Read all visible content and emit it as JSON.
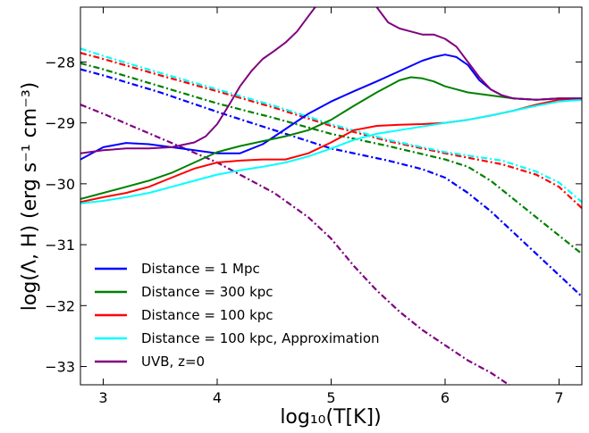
{
  "chart_data": {
    "type": "line",
    "xlabel": "log₁₀(T[K])",
    "ylabel": "log(Λ, H) (erg s⁻¹ cm⁻³)",
    "xlim": [
      2.8,
      7.2
    ],
    "ylim": [
      -33.3,
      -27.1
    ],
    "xticks": [
      3,
      4,
      5,
      6,
      7
    ],
    "yticks": [
      -28,
      -29,
      -30,
      -31,
      -32,
      -33
    ],
    "grid": false,
    "legend_position": "lower-left",
    "series": [
      {
        "name": "Distance = 1 Mpc",
        "kind": "cooling",
        "style": "solid",
        "color": "#0000ff",
        "x": [
          2.8,
          3.0,
          3.2,
          3.4,
          3.6,
          3.8,
          4.0,
          4.2,
          4.4,
          4.6,
          4.8,
          5.0,
          5.2,
          5.4,
          5.6,
          5.8,
          5.9,
          6.0,
          6.1,
          6.2,
          6.3,
          6.4,
          6.5,
          6.6,
          6.8,
          7.0,
          7.2
        ],
        "y": [
          -29.6,
          -29.4,
          -29.33,
          -29.35,
          -29.4,
          -29.45,
          -29.5,
          -29.5,
          -29.35,
          -29.1,
          -28.85,
          -28.65,
          -28.48,
          -28.32,
          -28.15,
          -27.98,
          -27.92,
          -27.88,
          -27.92,
          -28.05,
          -28.3,
          -28.45,
          -28.55,
          -28.6,
          -28.62,
          -28.6,
          -28.6
        ]
      },
      {
        "name": "Distance  = 300 kpc",
        "kind": "cooling",
        "style": "solid",
        "color": "#008000",
        "x": [
          2.8,
          3.0,
          3.2,
          3.4,
          3.6,
          3.8,
          4.0,
          4.2,
          4.4,
          4.6,
          4.8,
          5.0,
          5.2,
          5.4,
          5.6,
          5.7,
          5.8,
          5.9,
          6.0,
          6.2,
          6.4,
          6.6,
          6.8,
          7.0,
          7.2
        ],
        "y": [
          -30.25,
          -30.15,
          -30.05,
          -29.95,
          -29.82,
          -29.65,
          -29.48,
          -29.38,
          -29.3,
          -29.22,
          -29.12,
          -28.95,
          -28.72,
          -28.5,
          -28.3,
          -28.25,
          -28.27,
          -28.32,
          -28.4,
          -28.5,
          -28.55,
          -28.6,
          -28.62,
          -28.6,
          -28.6
        ]
      },
      {
        "name": "Distance = 100 kpc",
        "kind": "cooling",
        "style": "solid",
        "color": "#ff0000",
        "x": [
          2.8,
          3.0,
          3.2,
          3.4,
          3.6,
          3.8,
          4.0,
          4.2,
          4.4,
          4.6,
          4.8,
          5.0,
          5.2,
          5.4,
          5.6,
          5.8,
          6.0,
          6.2,
          6.4,
          6.6,
          6.8,
          7.0,
          7.2
        ],
        "y": [
          -30.3,
          -30.22,
          -30.15,
          -30.05,
          -29.9,
          -29.75,
          -29.65,
          -29.62,
          -29.6,
          -29.6,
          -29.5,
          -29.32,
          -29.12,
          -29.05,
          -29.03,
          -29.02,
          -29.0,
          -28.95,
          -28.88,
          -28.8,
          -28.7,
          -28.62,
          -28.6
        ]
      },
      {
        "name": "Distance = 100 kpc, Approximation",
        "kind": "cooling",
        "style": "solid",
        "color": "#00ffff",
        "x": [
          2.8,
          3.0,
          3.2,
          3.4,
          3.6,
          3.8,
          4.0,
          4.2,
          4.4,
          4.6,
          4.8,
          5.0,
          5.2,
          5.4,
          5.6,
          5.8,
          6.0,
          6.2,
          6.4,
          6.6,
          6.8,
          7.0,
          7.2
        ],
        "y": [
          -30.32,
          -30.28,
          -30.22,
          -30.15,
          -30.05,
          -29.95,
          -29.85,
          -29.78,
          -29.72,
          -29.65,
          -29.55,
          -29.42,
          -29.28,
          -29.18,
          -29.12,
          -29.06,
          -29.0,
          -28.95,
          -28.88,
          -28.8,
          -28.72,
          -28.65,
          -28.62
        ]
      },
      {
        "name": "UVB, z=0",
        "kind": "cooling",
        "style": "solid",
        "color": "#800080",
        "x": [
          2.8,
          3.0,
          3.2,
          3.4,
          3.6,
          3.8,
          3.9,
          4.0,
          4.1,
          4.2,
          4.3,
          4.4,
          4.5,
          4.6,
          4.7,
          4.8,
          4.9,
          5.0,
          5.1,
          5.2,
          5.3,
          5.4,
          5.5,
          5.6,
          5.7,
          5.8,
          5.9,
          6.0,
          6.1,
          6.2,
          6.3,
          6.4,
          6.5,
          6.6,
          6.8,
          7.0,
          7.2
        ],
        "y": [
          -29.5,
          -29.45,
          -29.42,
          -29.42,
          -29.4,
          -29.32,
          -29.22,
          -29.02,
          -28.72,
          -28.4,
          -28.15,
          -27.95,
          -27.82,
          -27.68,
          -27.5,
          -27.25,
          -27.0,
          -26.95,
          -26.95,
          -26.97,
          -27.0,
          -27.1,
          -27.35,
          -27.45,
          -27.5,
          -27.55,
          -27.55,
          -27.62,
          -27.75,
          -28.0,
          -28.25,
          -28.45,
          -28.55,
          -28.6,
          -28.62,
          -28.6,
          -28.6
        ]
      },
      {
        "name": "",
        "kind": "heating",
        "style": "dashdot",
        "color": "#0000ff",
        "x": [
          2.8,
          3.0,
          3.5,
          4.0,
          4.5,
          5.0,
          5.5,
          5.8,
          6.0,
          6.2,
          6.4,
          6.6,
          6.8,
          7.0,
          7.2
        ],
        "y": [
          -28.12,
          -28.22,
          -28.5,
          -28.82,
          -29.12,
          -29.42,
          -29.62,
          -29.76,
          -29.9,
          -30.15,
          -30.45,
          -30.8,
          -31.15,
          -31.5,
          -31.85
        ]
      },
      {
        "name": "",
        "kind": "heating",
        "style": "dashdot",
        "color": "#008000",
        "x": [
          2.8,
          3.0,
          3.5,
          4.0,
          4.5,
          5.0,
          5.5,
          6.0,
          6.2,
          6.4,
          6.6,
          6.8,
          7.0,
          7.2
        ],
        "y": [
          -28.02,
          -28.12,
          -28.4,
          -28.68,
          -28.92,
          -29.18,
          -29.38,
          -29.6,
          -29.72,
          -29.95,
          -30.25,
          -30.55,
          -30.85,
          -31.15
        ]
      },
      {
        "name": "",
        "kind": "heating",
        "style": "dashdot",
        "color": "#ff0000",
        "x": [
          2.8,
          3.0,
          3.5,
          4.0,
          4.5,
          5.0,
          5.5,
          6.0,
          6.5,
          6.8,
          7.0,
          7.2
        ],
        "y": [
          -27.85,
          -27.95,
          -28.22,
          -28.48,
          -28.75,
          -29.05,
          -29.3,
          -29.5,
          -29.68,
          -29.85,
          -30.05,
          -30.4
        ]
      },
      {
        "name": "",
        "kind": "heating",
        "style": "dashdot",
        "color": "#00ffff",
        "x": [
          2.8,
          3.0,
          3.5,
          4.0,
          4.5,
          5.0,
          5.5,
          6.0,
          6.5,
          6.8,
          7.0,
          7.2
        ],
        "y": [
          -27.78,
          -27.9,
          -28.18,
          -28.45,
          -28.72,
          -29.02,
          -29.28,
          -29.48,
          -29.62,
          -29.8,
          -29.98,
          -30.3
        ]
      },
      {
        "name": "",
        "kind": "heating",
        "style": "dashdot",
        "color": "#800080",
        "x": [
          2.8,
          3.0,
          3.5,
          4.0,
          4.5,
          4.8,
          5.0,
          5.2,
          5.4,
          5.6,
          5.8,
          6.0,
          6.2,
          6.4,
          6.6
        ],
        "y": [
          -28.7,
          -28.85,
          -29.25,
          -29.65,
          -30.15,
          -30.55,
          -30.9,
          -31.35,
          -31.75,
          -32.1,
          -32.4,
          -32.65,
          -32.9,
          -33.1,
          -33.35
        ]
      }
    ]
  }
}
